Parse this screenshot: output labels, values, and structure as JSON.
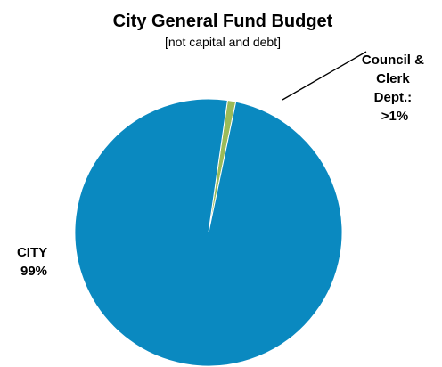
{
  "chart_data": {
    "type": "pie",
    "title": "City General Fund Budget",
    "subtitle": "[not capital and debt]",
    "slices": [
      {
        "category": "CITY",
        "value": 99,
        "percent_label": "99%",
        "color": "#0a89c0"
      },
      {
        "category": "Council & Clerk Dept.:",
        "value": 1,
        "percent_label": ">1%",
        "color": "#9bbb59"
      }
    ],
    "legend": "none"
  }
}
